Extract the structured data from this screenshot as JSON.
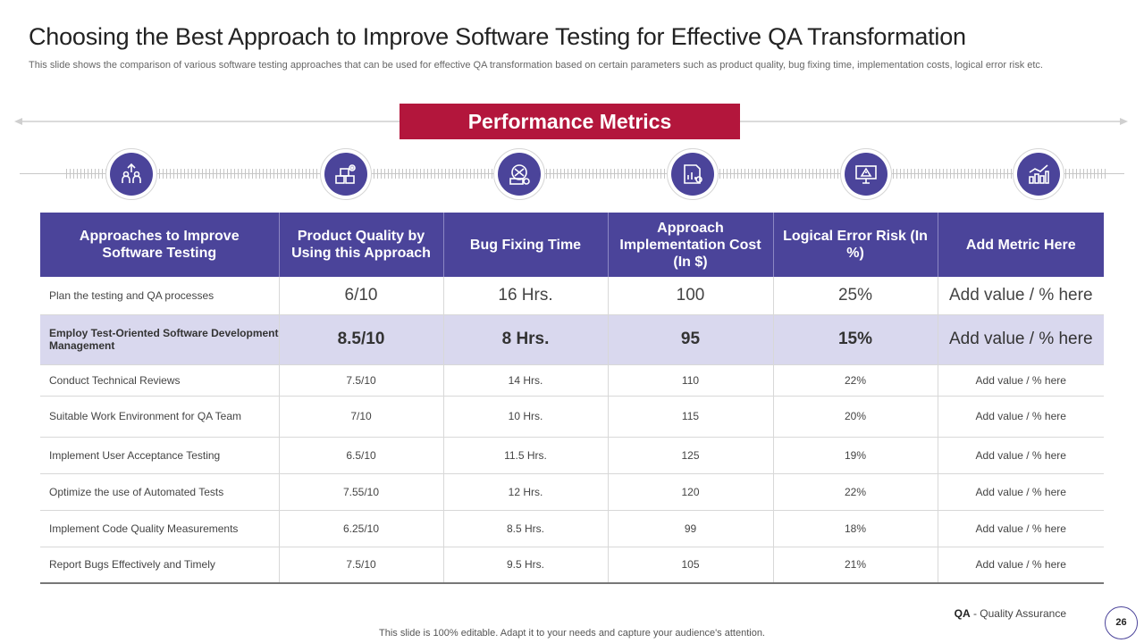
{
  "title": "Choosing the Best Approach to Improve Software Testing for Effective QA Transformation",
  "subtitle": "This slide shows the comparison of various software testing approaches that can be used for effective QA transformation based on certain parameters such as product quality, bug fixing time, implementation costs, logical error risk etc.",
  "banner": "Performance Metrics",
  "icons": [
    "people-growth-icon",
    "boxes-gear-icon",
    "tools-gear-icon",
    "report-gear-icon",
    "monitor-warning-icon",
    "chart-growth-icon"
  ],
  "colors": {
    "primary": "#4b449a",
    "banner": "#b3163c",
    "highlight_row": "#d9d8ee"
  },
  "table": {
    "headers": [
      "Approaches to Improve Software Testing",
      "Product Quality by Using this Approach",
      "Bug Fixing Time",
      "Approach Implementation Cost (In $)",
      "Logical Error Risk (In %)",
      "Add Metric Here"
    ],
    "rows": [
      [
        "Plan the testing and QA processes",
        "6/10",
        "16 Hrs.",
        "100",
        "25%",
        "Add value / % here"
      ],
      [
        "Employ Test-Oriented Software Development Management",
        "8.5/10",
        "8 Hrs.",
        "95",
        "15%",
        "Add value / % here"
      ],
      [
        "Conduct Technical Reviews",
        "7.5/10",
        "14 Hrs.",
        "110",
        "22%",
        "Add value / % here"
      ],
      [
        "Suitable Work Environment for QA Team",
        "7/10",
        "10 Hrs.",
        "115",
        "20%",
        "Add value / % here"
      ],
      [
        "Implement User Acceptance Testing",
        "6.5/10",
        "11.5 Hrs.",
        "125",
        "19%",
        "Add value / % here"
      ],
      [
        "Optimize the use of Automated Tests",
        "7.55/10",
        "12 Hrs.",
        "120",
        "22%",
        "Add value / % here"
      ],
      [
        "Implement Code Quality Measurements",
        "6.25/10",
        "8.5 Hrs.",
        "99",
        "18%",
        "Add value / % here"
      ],
      [
        "Report Bugs Effectively and Timely",
        "7.5/10",
        "9.5 Hrs.",
        "105",
        "21%",
        "Add value / % here"
      ]
    ]
  },
  "footnote": {
    "abbr": "QA",
    "text": " - Quality Assurance"
  },
  "footer": "This slide is 100% editable. Adapt it to your needs and capture your audience's attention.",
  "page_number": "26"
}
